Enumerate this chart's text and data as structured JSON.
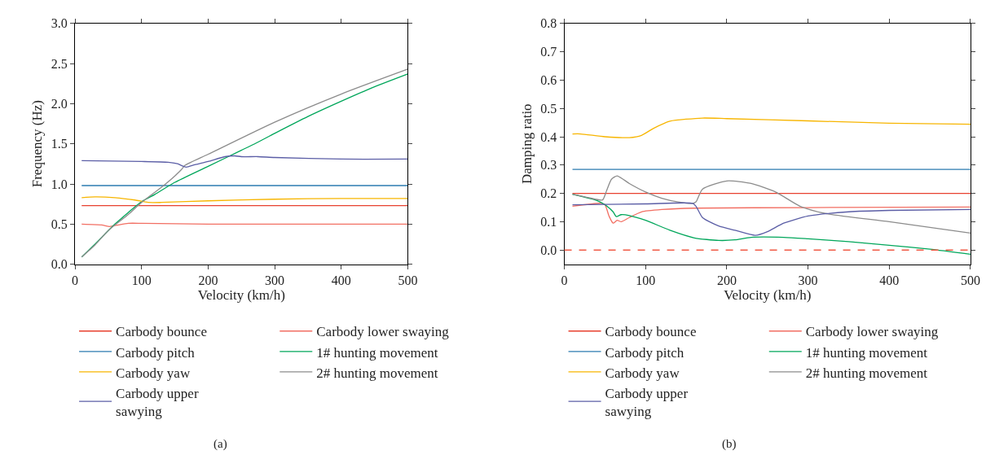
{
  "chart_data": [
    {
      "type": "line",
      "xlabel": "Velocity (km/h)",
      "ylabel": "Frequency (Hz)",
      "xlim": [
        0,
        500
      ],
      "xticks": [
        0,
        100,
        200,
        300,
        400,
        500
      ],
      "ylim": [
        0,
        3
      ],
      "yticks": [
        {
          "value": 0,
          "label": "0.0"
        },
        {
          "value": 0.5,
          "label": "0.5"
        },
        {
          "value": 1,
          "label": "1.0"
        },
        {
          "value": 1.5,
          "label": "1.5"
        },
        {
          "value": 2,
          "label": "2.0"
        },
        {
          "value": 2.5,
          "label": "2.5"
        },
        {
          "value": 3,
          "label": "3.0"
        }
      ],
      "legend": "bottom",
      "marker": "none",
      "annotations": [
        "(a)"
      ],
      "series": [
        {
          "name": "Carbody bounce",
          "color": "#e8402f",
          "x": [
            10,
            500
          ],
          "values": [
            0.73,
            0.73
          ]
        },
        {
          "name": "Carbody lower swaying",
          "color": "#f26f63",
          "x": [
            10,
            40,
            52,
            65,
            80,
            100,
            200,
            300,
            500
          ],
          "values": [
            0.5,
            0.49,
            0.47,
            0.49,
            0.51,
            0.51,
            0.5,
            0.5,
            0.5
          ]
        },
        {
          "name": "Carbody pitch",
          "color": "#2b7bb0",
          "x": [
            10,
            500
          ],
          "values": [
            0.98,
            0.98
          ]
        },
        {
          "name": "1# hunting movement",
          "color": "#00a65a",
          "x": [
            10,
            30,
            60,
            100,
            120,
            150,
            200,
            250,
            270,
            300,
            350,
            400,
            450,
            500
          ],
          "values": [
            0.09,
            0.25,
            0.5,
            0.78,
            0.87,
            1.02,
            1.22,
            1.42,
            1.5,
            1.63,
            1.84,
            2.03,
            2.21,
            2.37
          ]
        },
        {
          "name": "Carbody yaw",
          "color": "#f7b500",
          "x": [
            10,
            30,
            60,
            90,
            110,
            130,
            200,
            300,
            400,
            500
          ],
          "values": [
            0.83,
            0.84,
            0.83,
            0.8,
            0.77,
            0.77,
            0.79,
            0.81,
            0.82,
            0.82
          ]
        },
        {
          "name": "2# hunting movement",
          "color": "#8c8c8c",
          "x": [
            10,
            30,
            50,
            80,
            100,
            130,
            150,
            160,
            165,
            200,
            300,
            400,
            500
          ],
          "values": [
            0.09,
            0.24,
            0.42,
            0.62,
            0.77,
            0.96,
            1.1,
            1.18,
            1.23,
            1.37,
            1.77,
            2.12,
            2.43
          ]
        },
        {
          "name": "Carbody upper sawying",
          "color": "#5b5ea6",
          "x": [
            10,
            100,
            140,
            155,
            160,
            167,
            180,
            200,
            225,
            240,
            250,
            275,
            300,
            400,
            500
          ],
          "values": [
            1.29,
            1.28,
            1.27,
            1.25,
            1.23,
            1.21,
            1.24,
            1.28,
            1.34,
            1.35,
            1.34,
            1.34,
            1.33,
            1.31,
            1.31
          ]
        }
      ]
    },
    {
      "type": "line",
      "xlabel": "Velocity (km/h)",
      "ylabel": "Damping ratio",
      "xlim": [
        0,
        500
      ],
      "xticks": [
        0,
        100,
        200,
        300,
        400,
        500
      ],
      "ylim": [
        -0.05,
        0.8
      ],
      "yticks": [
        {
          "value": 0,
          "label": "0.0"
        },
        {
          "value": 0.1,
          "label": "0.1"
        },
        {
          "value": 0.2,
          "label": "0.2"
        },
        {
          "value": 0.3,
          "label": "0.3"
        },
        {
          "value": 0.4,
          "label": "0.4"
        },
        {
          "value": 0.5,
          "label": "0.5"
        },
        {
          "value": 0.6,
          "label": "0.6"
        },
        {
          "value": 0.7,
          "label": "0.7"
        },
        {
          "value": 0.8,
          "label": "0.8"
        }
      ],
      "legend": "bottom",
      "marker": "none",
      "annotations": [
        "(b)"
      ],
      "ref_lines": [
        {
          "axis": "y",
          "value": 0,
          "color": "#f05a45",
          "line_style": "dashed"
        }
      ],
      "series": [
        {
          "name": "Carbody bounce",
          "color": "#e8402f",
          "x": [
            10,
            500
          ],
          "values": [
            0.2,
            0.2
          ]
        },
        {
          "name": "Carbody lower swaying",
          "color": "#f26f63",
          "x": [
            10,
            45,
            50,
            55,
            60,
            65,
            70,
            80,
            95,
            120,
            160,
            300,
            500
          ],
          "values": [
            0.155,
            0.165,
            0.16,
            0.12,
            0.095,
            0.105,
            0.1,
            0.115,
            0.135,
            0.143,
            0.148,
            0.15,
            0.152
          ]
        },
        {
          "name": "Carbody pitch",
          "color": "#2b7bb0",
          "x": [
            10,
            500
          ],
          "values": [
            0.285,
            0.285
          ]
        },
        {
          "name": "1# hunting movement",
          "color": "#00a65a",
          "x": [
            10,
            40,
            50,
            60,
            64,
            70,
            80,
            100,
            130,
            160,
            190,
            210,
            230,
            270,
            300,
            350,
            400,
            450,
            500
          ],
          "values": [
            0.197,
            0.175,
            0.16,
            0.135,
            0.118,
            0.125,
            0.122,
            0.105,
            0.07,
            0.043,
            0.034,
            0.036,
            0.045,
            0.045,
            0.04,
            0.03,
            0.017,
            0.003,
            -0.015
          ]
        },
        {
          "name": "Carbody yaw",
          "color": "#f7b500",
          "x": [
            10,
            20,
            50,
            80,
            95,
            110,
            130,
            170,
            200,
            300,
            400,
            500
          ],
          "values": [
            0.41,
            0.41,
            0.4,
            0.397,
            0.405,
            0.43,
            0.455,
            0.466,
            0.464,
            0.456,
            0.448,
            0.444
          ]
        },
        {
          "name": "2# hunting movement",
          "color": "#8c8c8c",
          "x": [
            10,
            30,
            47,
            52,
            58,
            65,
            80,
            100,
            120,
            140,
            158,
            162,
            170,
            200,
            230,
            260,
            290,
            320,
            400,
            500
          ],
          "values": [
            0.197,
            0.185,
            0.177,
            0.21,
            0.25,
            0.262,
            0.235,
            0.205,
            0.183,
            0.17,
            0.165,
            0.17,
            0.215,
            0.244,
            0.235,
            0.205,
            0.155,
            0.13,
            0.1,
            0.06
          ]
        },
        {
          "name": "Carbody upper sawying",
          "color": "#5b5ea6",
          "x": [
            10,
            100,
            158,
            162,
            170,
            190,
            210,
            235,
            250,
            270,
            300,
            350,
            400,
            500
          ],
          "values": [
            0.16,
            0.163,
            0.165,
            0.155,
            0.115,
            0.085,
            0.07,
            0.052,
            0.065,
            0.095,
            0.12,
            0.135,
            0.14,
            0.143
          ]
        }
      ]
    }
  ]
}
